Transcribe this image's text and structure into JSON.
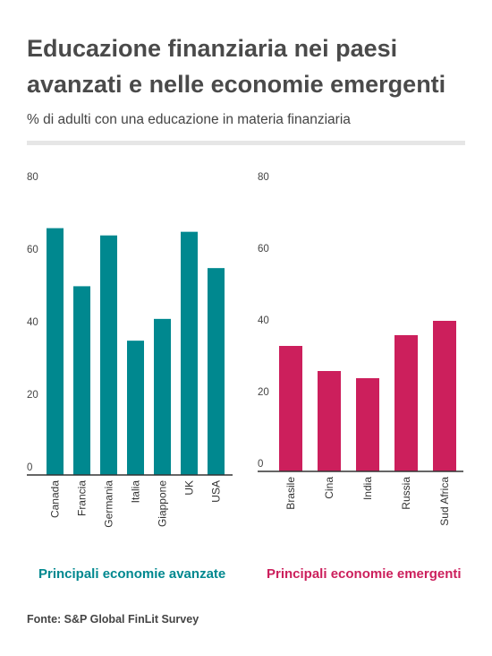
{
  "header": {
    "title": "Educazione finanziaria nei paesi avanzati e nelle economie emergenti",
    "subtitle": "% di adulti con una educazione in materia finanziaria"
  },
  "footer": {
    "source": "Fonte: S&P Global FinLit Survey"
  },
  "chart_data": [
    {
      "type": "bar",
      "title": "Principali economie avanzate",
      "categories": [
        "Canada",
        "Francia",
        "Germania",
        "Italia",
        "Giappone",
        "UK",
        "USA"
      ],
      "values": [
        68,
        52,
        66,
        37,
        43,
        67,
        57
      ],
      "ylim": [
        0,
        80
      ],
      "yticks": [
        0,
        20,
        40,
        60,
        80
      ],
      "color": "#00888f",
      "grid": false
    },
    {
      "type": "bar",
      "title": "Principali economie emergenti",
      "categories": [
        "Brasile",
        "Cina",
        "India",
        "Russia",
        "Sud Africa"
      ],
      "values": [
        35,
        28,
        26,
        38,
        42
      ],
      "ylim": [
        0,
        80
      ],
      "yticks": [
        0,
        20,
        40,
        60,
        80
      ],
      "color": "#cc1f5c",
      "grid": false
    }
  ]
}
